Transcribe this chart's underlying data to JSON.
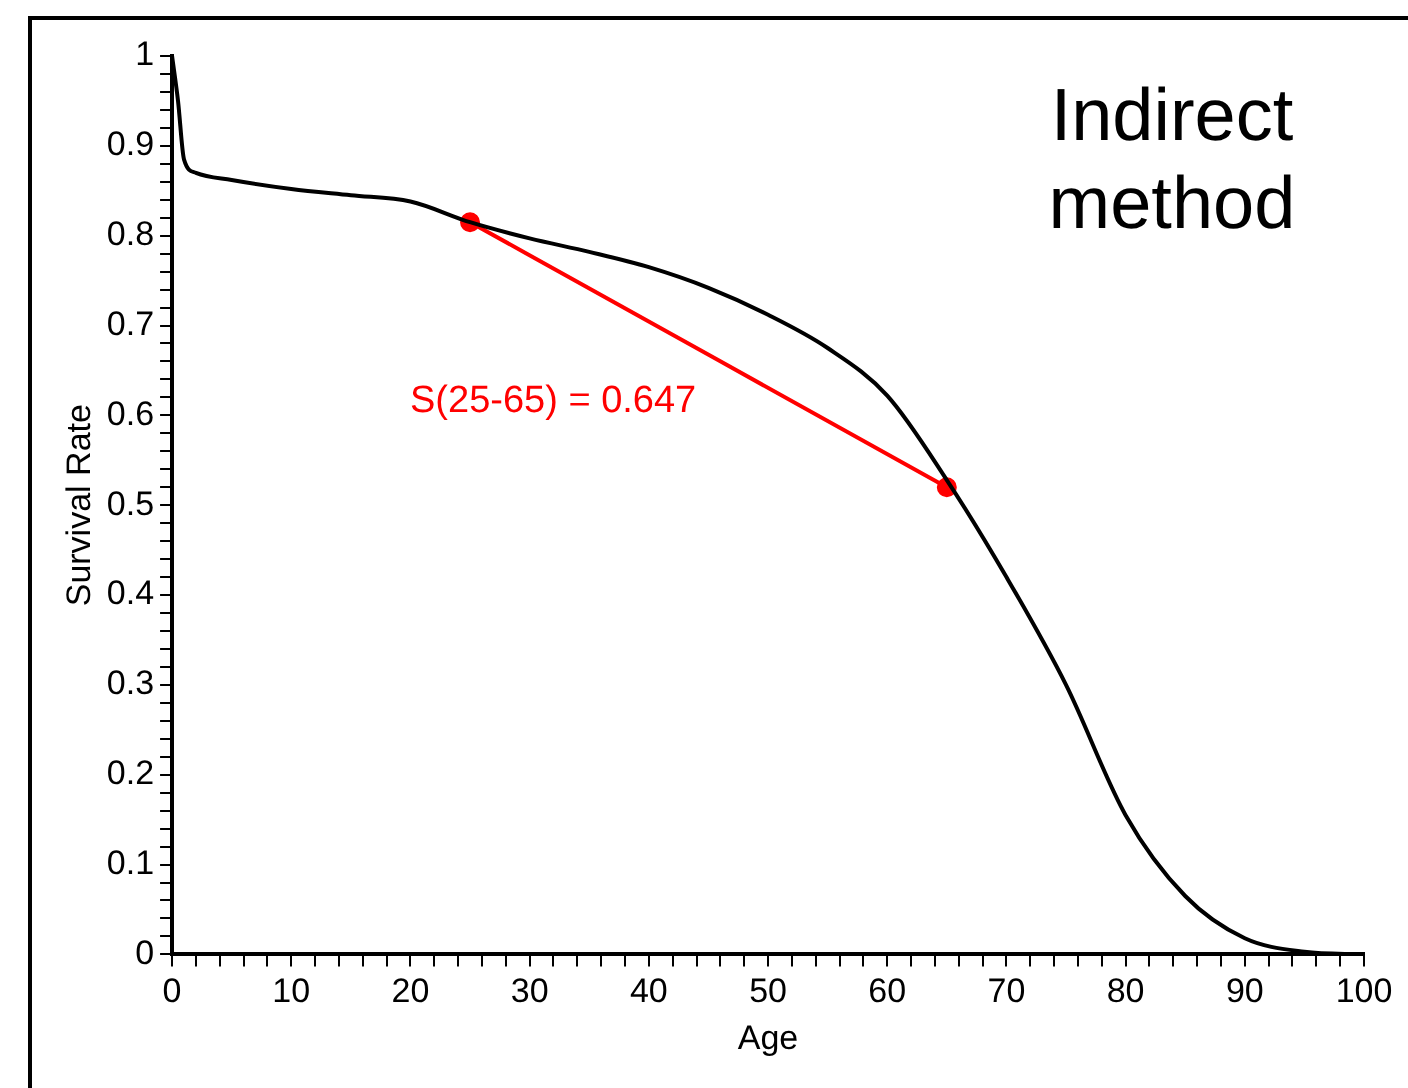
{
  "chart_data": {
    "type": "line",
    "xlabel": "Age",
    "ylabel": "Survival Rate",
    "annotations": [
      "Indirect method",
      "S(25-65) = 0.647"
    ],
    "series": [
      {
        "color": "#000000",
        "marker": "none",
        "x": [
          0,
          0.5,
          1,
          2,
          5,
          10,
          15,
          20,
          25,
          30,
          35,
          40,
          45,
          50,
          55,
          60,
          65,
          70,
          75,
          80,
          85,
          90,
          95,
          100
        ],
        "values": [
          1,
          0.95,
          0.885,
          0.87,
          0.862,
          0.852,
          0.845,
          0.838,
          0.815,
          0.797,
          0.782,
          0.765,
          0.742,
          0.712,
          0.675,
          0.622,
          0.528,
          0.42,
          0.3,
          0.155,
          0.065,
          0.018,
          0.003,
          0
        ]
      },
      {
        "color": "#ff0000",
        "marker": "circle",
        "x": [
          25,
          65
        ],
        "values": [
          0.815,
          0.52
        ]
      }
    ],
    "xlim": [
      0,
      100
    ],
    "xticks": [
      0,
      {
        "value": 2,
        "label": null
      },
      {
        "value": 4,
        "label": null
      },
      {
        "value": 6,
        "label": null
      },
      {
        "value": 8,
        "label": null
      },
      10,
      {
        "value": 12,
        "label": null
      },
      {
        "value": 14,
        "label": null
      },
      {
        "value": 16,
        "label": null
      },
      {
        "value": 18,
        "label": null
      },
      20,
      {
        "value": 22,
        "label": null
      },
      {
        "value": 24,
        "label": null
      },
      {
        "value": 26,
        "label": null
      },
      {
        "value": 28,
        "label": null
      },
      30,
      {
        "value": 32,
        "label": null
      },
      {
        "value": 34,
        "label": null
      },
      {
        "value": 36,
        "label": null
      },
      {
        "value": 38,
        "label": null
      },
      40,
      {
        "value": 42,
        "label": null
      },
      {
        "value": 44,
        "label": null
      },
      {
        "value": 46,
        "label": null
      },
      {
        "value": 48,
        "label": null
      },
      50,
      {
        "value": 52,
        "label": null
      },
      {
        "value": 54,
        "label": null
      },
      {
        "value": 56,
        "label": null
      },
      {
        "value": 58,
        "label": null
      },
      60,
      {
        "value": 62,
        "label": null
      },
      {
        "value": 64,
        "label": null
      },
      {
        "value": 66,
        "label": null
      },
      {
        "value": 68,
        "label": null
      },
      70,
      {
        "value": 72,
        "label": null
      },
      {
        "value": 74,
        "label": null
      },
      {
        "value": 76,
        "label": null
      },
      {
        "value": 78,
        "label": null
      },
      80,
      {
        "value": 82,
        "label": null
      },
      {
        "value": 84,
        "label": null
      },
      {
        "value": 86,
        "label": null
      },
      {
        "value": 88,
        "label": null
      },
      90,
      {
        "value": 92,
        "label": null
      },
      {
        "value": 94,
        "label": null
      },
      {
        "value": 96,
        "label": null
      },
      {
        "value": 98,
        "label": null
      },
      100
    ],
    "ylim": [
      0,
      1
    ],
    "yticks": [
      0,
      {
        "value": 0.02,
        "label": null
      },
      {
        "value": 0.04,
        "label": null
      },
      {
        "value": 0.06,
        "label": null
      },
      {
        "value": 0.08,
        "label": null
      },
      0.1,
      {
        "value": 0.12,
        "label": null
      },
      {
        "value": 0.14,
        "label": null
      },
      {
        "value": 0.16,
        "label": null
      },
      {
        "value": 0.18,
        "label": null
      },
      0.2,
      {
        "value": 0.22,
        "label": null
      },
      {
        "value": 0.24,
        "label": null
      },
      {
        "value": 0.26,
        "label": null
      },
      {
        "value": 0.28,
        "label": null
      },
      0.3,
      {
        "value": 0.32,
        "label": null
      },
      {
        "value": 0.34,
        "label": null
      },
      {
        "value": 0.36,
        "label": null
      },
      {
        "value": 0.38,
        "label": null
      },
      0.4,
      {
        "value": 0.42,
        "label": null
      },
      {
        "value": 0.44,
        "label": null
      },
      {
        "value": 0.46,
        "label": null
      },
      {
        "value": 0.48,
        "label": null
      },
      0.5,
      {
        "value": 0.52,
        "label": null
      },
      {
        "value": 0.54,
        "label": null
      },
      {
        "value": 0.56,
        "label": null
      },
      {
        "value": 0.58,
        "label": null
      },
      0.6,
      {
        "value": 0.62,
        "label": null
      },
      {
        "value": 0.64,
        "label": null
      },
      {
        "value": 0.66,
        "label": null
      },
      {
        "value": 0.68,
        "label": null
      },
      0.7,
      {
        "value": 0.72,
        "label": null
      },
      {
        "value": 0.74,
        "label": null
      },
      {
        "value": 0.76,
        "label": null
      },
      {
        "value": 0.78,
        "label": null
      },
      0.8,
      {
        "value": 0.82,
        "label": null
      },
      {
        "value": 0.84,
        "label": null
      },
      {
        "value": 0.86,
        "label": null
      },
      {
        "value": 0.88,
        "label": null
      },
      0.9,
      {
        "value": 0.92,
        "label": null
      },
      {
        "value": 0.94,
        "label": null
      },
      {
        "value": 0.96,
        "label": null
      },
      {
        "value": 0.98,
        "label": null
      },
      1
    ]
  }
}
